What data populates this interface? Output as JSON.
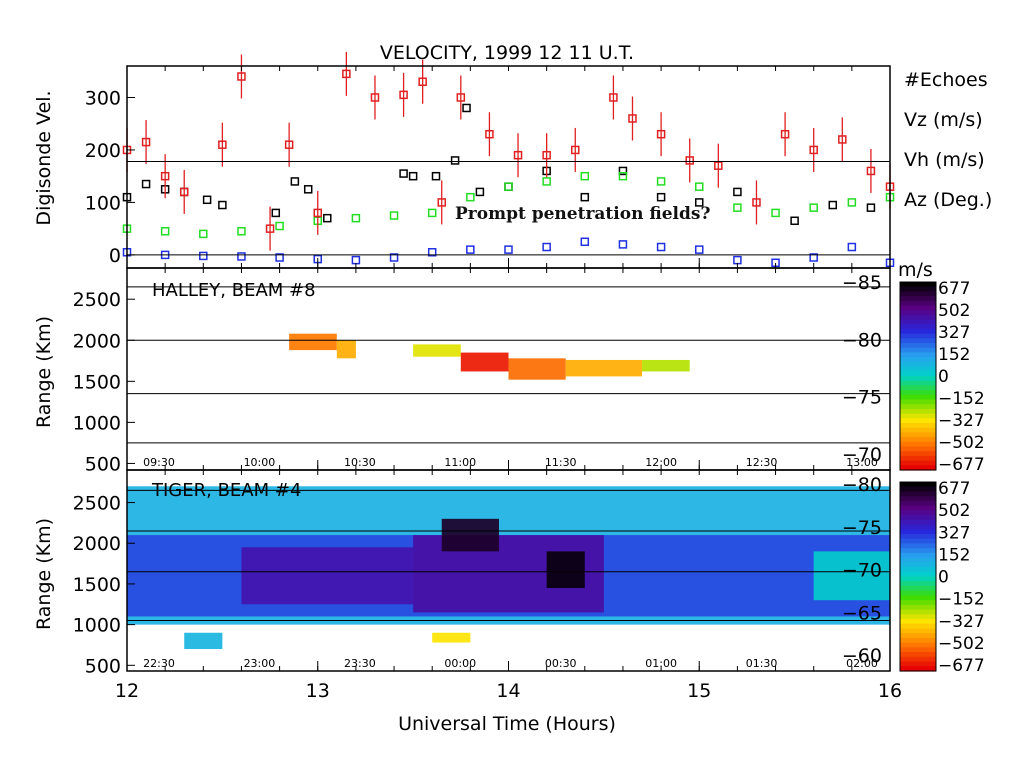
{
  "figure": {
    "title": "VELOCITY, 1999 12 11 U.T.",
    "xlabel": "Universal Time (Hours)",
    "annotation": "Prompt penetration fields?"
  },
  "colorbar": {
    "units": "m/s",
    "labels": [
      "677",
      "502",
      "327",
      "152",
      "0",
      "−152",
      "−327",
      "−502",
      "−677"
    ]
  },
  "colors": {
    "echoes": "#000000",
    "vz": "#2030e0",
    "vh": "#22dd22",
    "az": "#e02020"
  },
  "chart_data": [
    {
      "type": "scatter",
      "panel": "digisonde",
      "ylabel": "Digisonde Vel.",
      "xlim": [
        12,
        16
      ],
      "ylim": [
        -25,
        360
      ],
      "yticks": [
        "0",
        "100",
        "200",
        "300"
      ],
      "legend": {
        "placement": "right",
        "entries": [
          "#Echoes",
          "Vz (m/s)",
          "Vh (m/s)",
          "Az (Deg.)"
        ]
      },
      "series": [
        {
          "name": "#Echoes",
          "x": [
            12.0,
            12.1,
            12.2,
            12.3,
            12.42,
            12.5,
            12.78,
            12.88,
            12.95,
            13.05,
            13.45,
            13.5,
            13.62,
            13.72,
            13.78,
            13.85,
            14.0,
            14.2,
            14.4,
            14.6,
            14.8,
            15.0,
            15.2,
            15.5,
            15.7,
            15.9
          ],
          "y": [
            110,
            135,
            125,
            120,
            105,
            95,
            80,
            140,
            125,
            70,
            155,
            150,
            150,
            180,
            280,
            120,
            130,
            160,
            110,
            160,
            110,
            100,
            120,
            65,
            95,
            90
          ]
        },
        {
          "name": "Vz (m/s)",
          "x": [
            12.0,
            12.2,
            12.4,
            12.6,
            12.8,
            13.0,
            13.2,
            13.4,
            13.6,
            13.8,
            14.0,
            14.2,
            14.4,
            14.6,
            14.8,
            15.0,
            15.2,
            15.4,
            15.6,
            15.8,
            16.0
          ],
          "y": [
            5,
            0,
            -2,
            -3,
            -5,
            -8,
            -10,
            -5,
            5,
            10,
            10,
            15,
            25,
            20,
            15,
            10,
            -10,
            -15,
            -5,
            15,
            -15
          ]
        },
        {
          "name": "Vh (m/s)",
          "x": [
            12.0,
            12.2,
            12.4,
            12.6,
            12.8,
            13.0,
            13.2,
            13.4,
            13.6,
            13.8,
            14.0,
            14.2,
            14.4,
            14.6,
            14.8,
            15.0,
            15.2,
            15.4,
            15.6,
            15.8,
            16.0
          ],
          "y": [
            50,
            45,
            40,
            45,
            55,
            65,
            70,
            75,
            80,
            110,
            130,
            140,
            150,
            150,
            140,
            130,
            90,
            80,
            90,
            100,
            110
          ]
        },
        {
          "name": "Az (Deg.)",
          "x": [
            12.0,
            12.1,
            12.2,
            12.3,
            12.5,
            12.6,
            12.75,
            12.85,
            13.0,
            13.15,
            13.3,
            13.45,
            13.55,
            13.65,
            13.75,
            13.9,
            14.05,
            14.2,
            14.35,
            14.55,
            14.65,
            14.8,
            14.95,
            15.1,
            15.3,
            15.45,
            15.6,
            15.75,
            15.9,
            16.0
          ],
          "y": [
            200,
            215,
            150,
            120,
            210,
            340,
            50,
            210,
            80,
            345,
            300,
            305,
            330,
            100,
            300,
            230,
            190,
            190,
            200,
            300,
            260,
            230,
            180,
            170,
            100,
            230,
            200,
            220,
            160,
            130
          ]
        }
      ]
    },
    {
      "type": "heatmap",
      "panel": "halley",
      "title": "HALLEY, BEAM #8",
      "ylabel": "Range (Km)",
      "xlim": [
        12,
        16
      ],
      "ylim": [
        420,
        2880
      ],
      "yticks": [
        "500",
        "1000",
        "1500",
        "2000",
        "2500"
      ],
      "right_ticks": [
        "−85",
        "−80",
        "−75",
        "−70"
      ],
      "time_labels": [
        "09:30",
        "10:00",
        "10:30",
        "11:00",
        "11:30",
        "12:00",
        "12:30",
        "13:00"
      ],
      "echo_regions": [
        {
          "t0": 12.85,
          "t1": 13.1,
          "r0": 1880,
          "r1": 2080,
          "v": -500
        },
        {
          "t0": 13.1,
          "t1": 13.2,
          "r0": 1780,
          "r1": 2000,
          "v": -420
        },
        {
          "t0": 13.5,
          "t1": 13.75,
          "r0": 1800,
          "r1": 1950,
          "v": -300
        },
        {
          "t0": 13.75,
          "t1": 14.0,
          "r0": 1620,
          "r1": 1850,
          "v": -640
        },
        {
          "t0": 14.0,
          "t1": 14.3,
          "r0": 1520,
          "r1": 1780,
          "v": -520
        },
        {
          "t0": 14.3,
          "t1": 14.7,
          "r0": 1560,
          "r1": 1760,
          "v": -420
        },
        {
          "t0": 14.7,
          "t1": 14.95,
          "r0": 1620,
          "r1": 1760,
          "v": -260
        }
      ]
    },
    {
      "type": "heatmap",
      "panel": "tiger",
      "title": "TIGER,   BEAM #4",
      "ylabel": "Range (Km)",
      "xlim": [
        12,
        16
      ],
      "ylim": [
        430,
        2900
      ],
      "yticks": [
        "500",
        "1000",
        "1500",
        "2000",
        "2500"
      ],
      "right_ticks": [
        "−80",
        "−75",
        "−70",
        "−65",
        "−60"
      ],
      "time_labels": [
        "22:30",
        "23:00",
        "23:30",
        "00:00",
        "00:30",
        "01:00",
        "01:30",
        "02:00"
      ],
      "echo_regions": [
        {
          "t0": 12.0,
          "t1": 16.0,
          "r0": 1000,
          "r1": 2700,
          "v": 100
        },
        {
          "t0": 12.0,
          "t1": 16.0,
          "r0": 1100,
          "r1": 2100,
          "v": 280
        },
        {
          "t0": 12.6,
          "t1": 13.5,
          "r0": 1250,
          "r1": 1950,
          "v": 420
        },
        {
          "t0": 13.5,
          "t1": 14.5,
          "r0": 1150,
          "r1": 2100,
          "v": 440
        },
        {
          "t0": 13.65,
          "t1": 13.95,
          "r0": 1900,
          "r1": 2300,
          "v": 620
        },
        {
          "t0": 14.2,
          "t1": 14.4,
          "r0": 1450,
          "r1": 1900,
          "v": 660
        },
        {
          "t0": 15.6,
          "t1": 16.0,
          "r0": 1300,
          "r1": 1900,
          "v": 20
        },
        {
          "t0": 12.3,
          "t1": 12.5,
          "r0": 700,
          "r1": 900,
          "v": 90
        },
        {
          "t0": 13.6,
          "t1": 13.8,
          "r0": 780,
          "r1": 900,
          "v": -330
        }
      ]
    }
  ]
}
